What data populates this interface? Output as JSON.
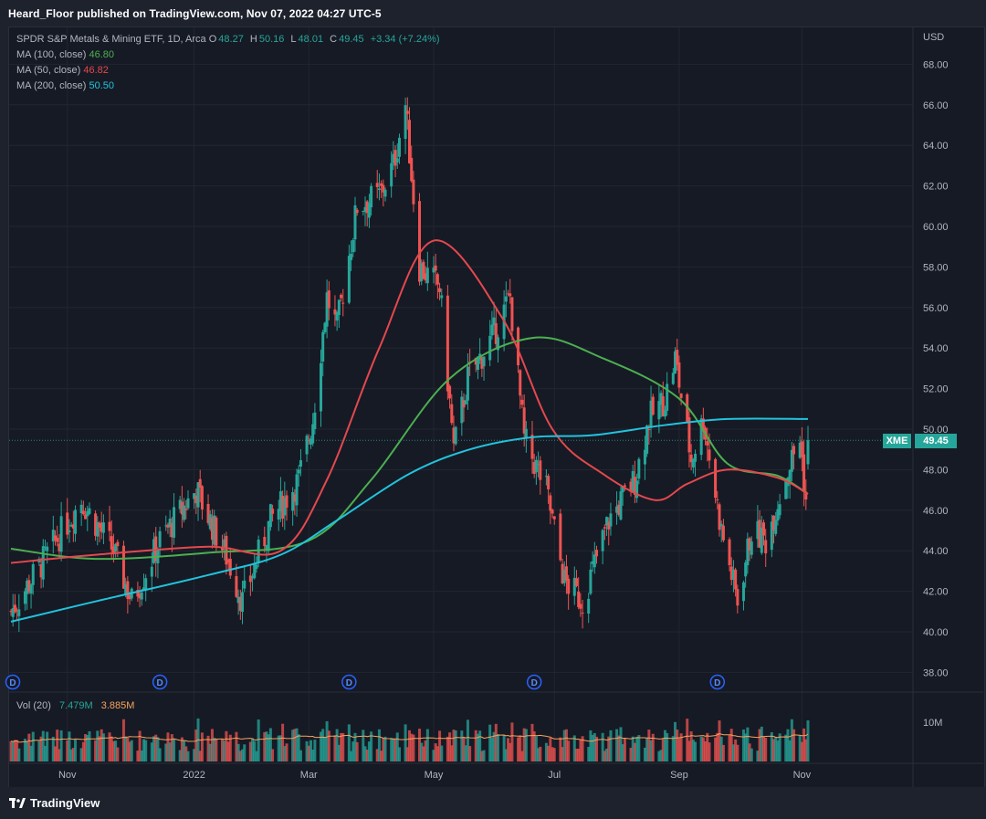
{
  "header": {
    "publisher": "Heard_Floor published on TradingView.com, Nov 07, 2022 04:27 UTC-5"
  },
  "legend": {
    "symbol": "SPDR S&P Metals & Mining ETF, 1D, Arca",
    "o_label": "O",
    "o_value": "48.27",
    "h_label": "H",
    "h_value": "50.16",
    "l_label": "L",
    "l_value": "48.01",
    "c_label": "C",
    "c_value": "49.45",
    "change": "+3.34 (+7.24%)",
    "ma100_label": "MA (100, close)",
    "ma100_value": "46.80",
    "ma50_label": "MA (50, close)",
    "ma50_value": "46.82",
    "ma200_label": "MA (200, close)",
    "ma200_value": "50.50"
  },
  "volume_legend": {
    "label": "Vol (20)",
    "value": "7.479M",
    "ma_value": "3.885M"
  },
  "price_axis": {
    "currency": "USD",
    "ticks": [
      "68.00",
      "66.00",
      "64.00",
      "62.00",
      "60.00",
      "58.00",
      "56.00",
      "54.00",
      "52.00",
      "50.00",
      "48.00",
      "46.00",
      "44.00",
      "42.00",
      "40.00",
      "38.00"
    ]
  },
  "volume_axis": {
    "tick": "10M"
  },
  "time_axis": {
    "ticks": [
      "Nov",
      "2022",
      "Mar",
      "May",
      "Jul",
      "Sep",
      "Nov"
    ]
  },
  "last_price": {
    "ticker": "XME",
    "price": "49.45"
  },
  "dividend_marker": "D",
  "footer": {
    "brand": "TradingView"
  },
  "colors": {
    "up": "#26a69a",
    "down": "#ef5350",
    "ma100": "#4caf50",
    "ma50": "#e5484d",
    "ma200": "#22c3dc",
    "vol_ma": "#f7a35c"
  },
  "chart_data": {
    "type": "candlestick",
    "symbol": "XME",
    "title": "SPDR S&P Metals & Mining ETF, 1D, Arca",
    "ylim": [
      37,
      69
    ],
    "x_range": [
      "2021-10-04",
      "2022-11-04"
    ],
    "ohlc_anchors": [
      [
        "2021-10-04",
        41.0
      ],
      [
        "2021-10-20",
        43.5
      ],
      [
        "2021-11-08",
        46.5
      ],
      [
        "2021-11-24",
        44.0
      ],
      [
        "2021-12-03",
        41.5
      ],
      [
        "2021-12-17",
        44.5
      ],
      [
        "2022-01-04",
        47.0
      ],
      [
        "2022-01-20",
        43.5
      ],
      [
        "2022-01-27",
        41.5
      ],
      [
        "2022-02-10",
        45.5
      ],
      [
        "2022-02-24",
        47.5
      ],
      [
        "2022-03-03",
        50.5
      ],
      [
        "2022-03-10",
        56.5
      ],
      [
        "2022-03-15",
        55.0
      ],
      [
        "2022-03-25",
        61.0
      ],
      [
        "2022-04-05",
        61.5
      ],
      [
        "2022-04-12",
        63.0
      ],
      [
        "2022-04-18",
        66.0
      ],
      [
        "2022-04-25",
        58.0
      ],
      [
        "2022-05-05",
        57.0
      ],
      [
        "2022-05-12",
        49.0
      ],
      [
        "2022-05-19",
        52.5
      ],
      [
        "2022-05-31",
        54.5
      ],
      [
        "2022-06-09",
        56.5
      ],
      [
        "2022-06-16",
        49.5
      ],
      [
        "2022-06-27",
        47.0
      ],
      [
        "2022-07-06",
        42.5
      ],
      [
        "2022-07-15",
        41.5
      ],
      [
        "2022-07-28",
        45.5
      ],
      [
        "2022-08-10",
        47.5
      ],
      [
        "2022-08-17",
        50.5
      ],
      [
        "2022-08-25",
        51.5
      ],
      [
        "2022-08-30",
        53.5
      ],
      [
        "2022-09-07",
        48.5
      ],
      [
        "2022-09-13",
        50.5
      ],
      [
        "2022-09-22",
        45.0
      ],
      [
        "2022-09-30",
        41.5
      ],
      [
        "2022-10-07",
        45.0
      ],
      [
        "2022-10-14",
        44.5
      ],
      [
        "2022-10-25",
        48.0
      ],
      [
        "2022-10-31",
        49.5
      ],
      [
        "2022-11-03",
        46.5
      ],
      [
        "2022-11-04",
        49.45
      ]
    ],
    "last": {
      "open": 48.27,
      "high": 50.16,
      "low": 48.01,
      "close": 49.45,
      "change": 3.34,
      "change_pct": 7.24
    },
    "moving_averages": [
      {
        "name": "MA (100, close)",
        "last": 46.8,
        "points": [
          [
            "2021-10-04",
            44.1
          ],
          [
            "2021-11-15",
            43.6
          ],
          [
            "2022-01-10",
            43.9
          ],
          [
            "2022-03-01",
            44.5
          ],
          [
            "2022-04-01",
            47.5
          ],
          [
            "2022-05-10",
            52.5
          ],
          [
            "2022-06-20",
            54.5
          ],
          [
            "2022-07-25",
            53.5
          ],
          [
            "2022-09-01",
            51.5
          ],
          [
            "2022-09-25",
            48.3
          ],
          [
            "2022-10-20",
            47.7
          ],
          [
            "2022-11-04",
            46.8
          ]
        ]
      },
      {
        "name": "MA (50, close)",
        "last": 46.82,
        "points": [
          [
            "2021-10-04",
            43.4
          ],
          [
            "2021-11-15",
            43.8
          ],
          [
            "2022-01-10",
            44.2
          ],
          [
            "2022-02-15",
            44.0
          ],
          [
            "2022-03-10",
            47.5
          ],
          [
            "2022-04-05",
            54.0
          ],
          [
            "2022-05-02",
            59.3
          ],
          [
            "2022-06-05",
            55.5
          ],
          [
            "2022-06-30",
            50.0
          ],
          [
            "2022-07-25",
            47.8
          ],
          [
            "2022-08-20",
            46.5
          ],
          [
            "2022-09-05",
            47.3
          ],
          [
            "2022-09-25",
            48.0
          ],
          [
            "2022-10-20",
            47.6
          ],
          [
            "2022-11-04",
            46.8
          ]
        ]
      },
      {
        "name": "MA (200, close)",
        "last": 50.5,
        "points": [
          [
            "2021-10-04",
            40.5
          ],
          [
            "2021-11-15",
            41.5
          ],
          [
            "2022-01-10",
            42.8
          ],
          [
            "2022-02-15",
            43.8
          ],
          [
            "2022-03-15",
            45.5
          ],
          [
            "2022-04-20",
            47.8
          ],
          [
            "2022-05-20",
            49.0
          ],
          [
            "2022-06-20",
            49.6
          ],
          [
            "2022-07-20",
            49.7
          ],
          [
            "2022-08-25",
            50.2
          ],
          [
            "2022-09-25",
            50.5
          ],
          [
            "2022-11-04",
            50.5
          ]
        ]
      }
    ],
    "volume": {
      "label": "Vol (20)",
      "last": 7.479,
      "ma": 3.885,
      "unit": "M",
      "axis_tick": 10
    },
    "dividends": [
      "2021-09-20",
      "2021-12-17",
      "2022-03-21",
      "2022-06-21",
      "2022-09-20"
    ],
    "time_ticks": [
      "Nov",
      "2022",
      "Mar",
      "May",
      "Jul",
      "Sep",
      "Nov"
    ],
    "grid": true
  }
}
